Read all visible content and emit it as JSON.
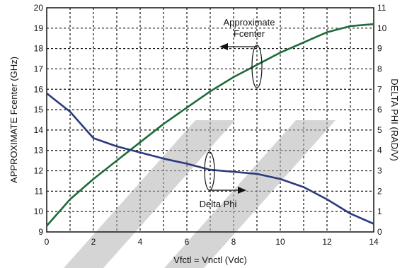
{
  "chart_data": {
    "type": "line",
    "xlabel": "Vfctl = Vnctl (Vdc)",
    "ylabel_left": "APPROXIMATE Fcenter (GHz)",
    "ylabel_right": "DELTA PHI (RAD/V)",
    "xlim": [
      0,
      14
    ],
    "ylim_left": [
      9,
      20
    ],
    "ylim_right": [
      0,
      11
    ],
    "x_ticks": [
      "0",
      "2",
      "4",
      "6",
      "8",
      "10",
      "12",
      "14"
    ],
    "y_left_ticks": [
      "9",
      "10",
      "11",
      "12",
      "13",
      "14",
      "15",
      "16",
      "17",
      "18",
      "19",
      "20"
    ],
    "y_right_ticks": [
      "0",
      "1",
      "2",
      "3",
      "4",
      "5",
      "6",
      "7",
      "8",
      "9",
      "10",
      "11"
    ],
    "grid": true,
    "series": [
      {
        "name": "Approximate Fcenter",
        "axis": "left",
        "color": "#1f6b3a",
        "x": [
          0,
          1,
          2,
          3,
          4,
          5,
          6,
          7,
          8,
          9,
          10,
          11,
          12,
          13,
          14
        ],
        "y": [
          9.3,
          10.6,
          11.6,
          12.5,
          13.4,
          14.3,
          15.1,
          15.9,
          16.6,
          17.2,
          17.8,
          18.3,
          18.8,
          19.1,
          19.2
        ]
      },
      {
        "name": "Delta Phi",
        "axis": "left",
        "color": "#2b3a7a",
        "x": [
          0,
          1,
          2,
          3,
          4,
          5,
          6,
          7,
          8,
          9,
          10,
          11,
          12,
          13,
          14
        ],
        "y": [
          15.8,
          14.9,
          13.6,
          13.2,
          12.9,
          12.6,
          12.35,
          12.05,
          11.95,
          11.85,
          11.6,
          11.2,
          10.6,
          9.9,
          9.4
        ]
      }
    ],
    "annotations": [
      {
        "text": [
          "Approximate",
          "Fcenter"
        ],
        "points_to": "left-axis"
      },
      {
        "text": [
          "Delta Phi"
        ],
        "points_to": "right-axis"
      }
    ]
  }
}
